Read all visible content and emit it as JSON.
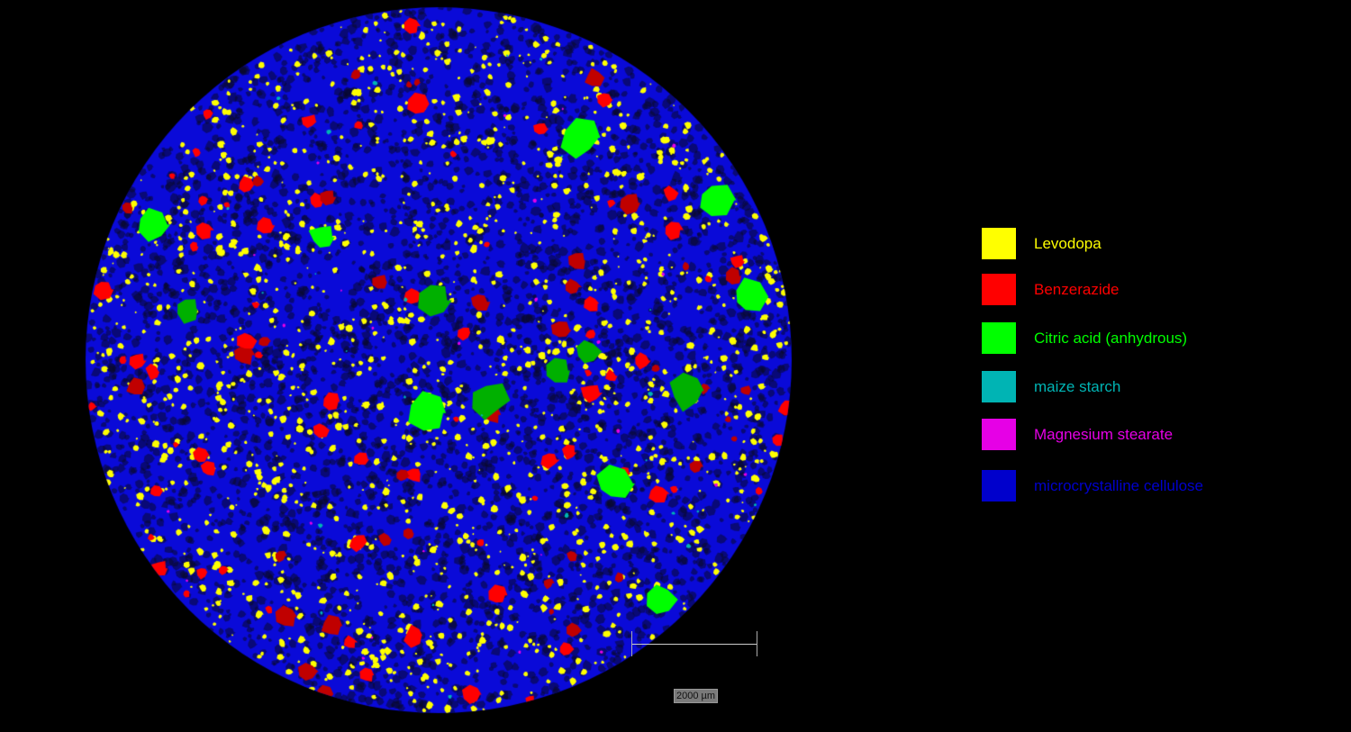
{
  "legend": {
    "items": [
      {
        "label": "Levodopa",
        "color": "#ffff00"
      },
      {
        "label": "Benzerazide",
        "color": "#ff0000"
      },
      {
        "label": "Citric acid (anhydrous)",
        "color": "#00ff00"
      },
      {
        "label": "maize starch",
        "color": "#00b4b4"
      },
      {
        "label": "Magnesium stearate",
        "color": "#e600e6"
      },
      {
        "label": "microcrystalline cellulose",
        "color": "#0000cc"
      }
    ]
  },
  "scale_bar": {
    "label": "2000 µm"
  }
}
